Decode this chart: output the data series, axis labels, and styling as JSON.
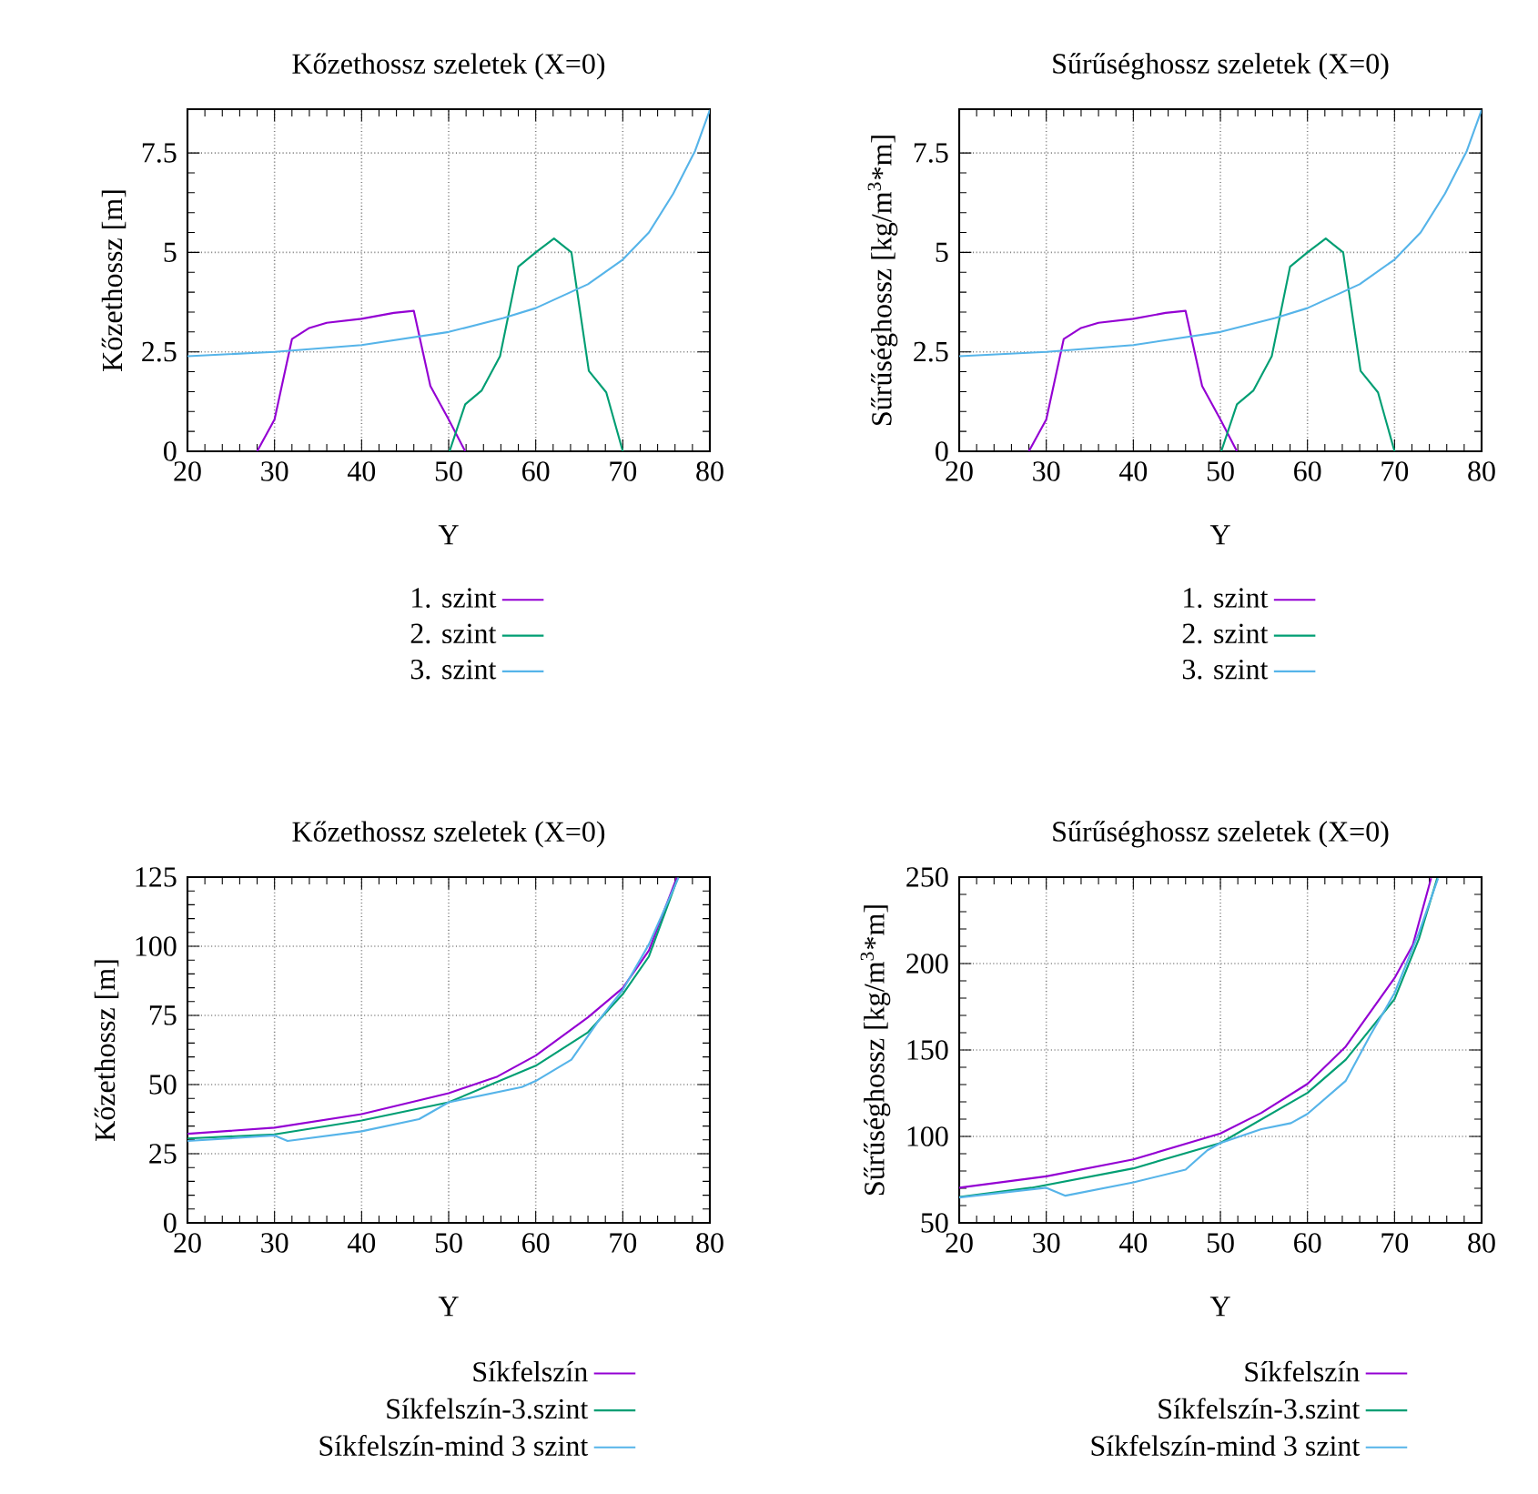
{
  "chart_data": [
    {
      "type": "line",
      "title": "Kőzethossz szeletek (X=0)",
      "xlabel": "Y",
      "ylabel": "Kőzethossz [m]",
      "xlim": [
        20,
        80
      ],
      "ylim": [
        0,
        8.6
      ],
      "xticks": [
        20,
        30,
        40,
        50,
        60,
        70,
        80
      ],
      "yticks": [
        0,
        2.5,
        5,
        7.5
      ],
      "grid": true,
      "legend": "bottom",
      "series": [
        {
          "name": "1. szint",
          "color": "#9400d3",
          "x": [
            28,
            30,
            32,
            34,
            36,
            40,
            43.7,
            46,
            47.9,
            50,
            51.9
          ],
          "values": [
            0,
            0.8,
            2.82,
            3.1,
            3.23,
            3.33,
            3.48,
            3.53,
            1.64,
            0.8,
            0
          ]
        },
        {
          "name": "2. szint",
          "color": "#009e73",
          "x": [
            50.1,
            51.9,
            53.8,
            55.9,
            58,
            60,
            62.1,
            64.1,
            66.1,
            68.1,
            70
          ],
          "values": [
            0,
            1.18,
            1.53,
            2.39,
            4.64,
            5,
            5.35,
            5,
            2.02,
            1.48,
            0
          ]
        },
        {
          "name": "3. szint",
          "color": "#56b4e9",
          "x": [
            20,
            30,
            40,
            50,
            56.3,
            60,
            66,
            70,
            73,
            75.8,
            78.3,
            80
          ],
          "values": [
            2.39,
            2.5,
            2.67,
            3,
            3.35,
            3.6,
            4.2,
            4.82,
            5.5,
            6.48,
            7.55,
            8.58
          ]
        }
      ]
    },
    {
      "type": "line",
      "title": "Sűrűséghossz szeletek (X=0)",
      "xlabel": "Y",
      "ylabel": "Sűrűséghossz [kg/m$^{3}$*m]",
      "xlim": [
        20,
        80
      ],
      "ylim": [
        0,
        8.6
      ],
      "xticks": [
        20,
        30,
        40,
        50,
        60,
        70,
        80
      ],
      "yticks": [
        0,
        2.5,
        5,
        7.5
      ],
      "grid": true,
      "legend": "bottom",
      "series": [
        {
          "name": "1. szint",
          "color": "#9400d3",
          "x": [
            28,
            30,
            32,
            34,
            36,
            40,
            43.7,
            46,
            47.9,
            50,
            51.9
          ],
          "values": [
            0,
            0.8,
            2.82,
            3.1,
            3.23,
            3.33,
            3.48,
            3.53,
            1.64,
            0.8,
            0
          ]
        },
        {
          "name": "2. szint",
          "color": "#009e73",
          "x": [
            50.1,
            51.9,
            53.8,
            55.9,
            58,
            60,
            62.1,
            64.1,
            66.1,
            68.1,
            70
          ],
          "values": [
            0,
            1.18,
            1.53,
            2.39,
            4.64,
            5,
            5.35,
            5,
            2.02,
            1.48,
            0
          ]
        },
        {
          "name": "3. szint",
          "color": "#56b4e9",
          "x": [
            20,
            30,
            40,
            50,
            56.3,
            60,
            66,
            70,
            73,
            75.8,
            78.3,
            80
          ],
          "values": [
            2.39,
            2.5,
            2.67,
            3,
            3.35,
            3.6,
            4.2,
            4.82,
            5.5,
            6.48,
            7.55,
            8.58
          ]
        }
      ]
    },
    {
      "type": "line",
      "title": "Kőzethossz szeletek (X=0)",
      "xlabel": "Y",
      "ylabel": "Kőzethossz [m]",
      "xlim": [
        20,
        80
      ],
      "ylim": [
        0,
        125
      ],
      "xticks": [
        20,
        30,
        40,
        50,
        60,
        70,
        80
      ],
      "yticks": [
        0,
        25,
        50,
        75,
        100,
        125
      ],
      "grid": true,
      "legend": "bottom",
      "series": [
        {
          "name": "Síkfelszín",
          "color": "#9400d3",
          "x": [
            20,
            30,
            40,
            50,
            55.6,
            60,
            66,
            70,
            73,
            76.2
          ],
          "values": [
            32.2,
            34.4,
            39.3,
            46.9,
            52.9,
            60.5,
            74.3,
            84.9,
            98.5,
            124.8
          ]
        },
        {
          "name": "Síkfelszín-3.szint",
          "color": "#009e73",
          "x": [
            20,
            30,
            40,
            50,
            60,
            66,
            70,
            73,
            76.2
          ],
          "values": [
            30.5,
            32,
            37,
            43.6,
            56.8,
            68.9,
            82.7,
            96.3,
            123.7
          ]
        },
        {
          "name": "Síkfelszín-mind 3 szint",
          "color": "#56b4e9",
          "x": [
            20,
            30,
            31.5,
            40,
            46.6,
            50,
            58.4,
            60,
            64.1,
            67.4,
            70,
            73,
            76.4
          ],
          "values": [
            29.6,
            31.6,
            29.6,
            33.1,
            37.5,
            43.6,
            49.1,
            51.3,
            59,
            73.9,
            84.2,
            100.7,
            124.8
          ]
        }
      ]
    },
    {
      "type": "line",
      "title": "Sűrűséghossz szeletek (X=0)",
      "xlabel": "Y",
      "ylabel": "Sűrűséghossz [kg/m$^{3}$*m]",
      "xlim": [
        20,
        80
      ],
      "ylim": [
        50,
        250
      ],
      "xticks": [
        20,
        30,
        40,
        50,
        60,
        70,
        80
      ],
      "yticks": [
        50,
        100,
        150,
        200,
        250
      ],
      "grid": true,
      "legend": "bottom",
      "series": [
        {
          "name": "Síkfelszín",
          "color": "#9400d3",
          "x": [
            20,
            30,
            40,
            50,
            54.7,
            60,
            64.4,
            70,
            72.1,
            74.2
          ],
          "values": [
            70.3,
            76.9,
            86.7,
            101.7,
            113.6,
            130.4,
            152,
            191.6,
            210.8,
            249.3
          ]
        },
        {
          "name": "Síkfelszín-3.szint",
          "color": "#009e73",
          "x": [
            20,
            28.3,
            40,
            50,
            60,
            64.4,
            70,
            72.8,
            74.9
          ],
          "values": [
            65,
            70.3,
            81.5,
            96.2,
            125.2,
            144.4,
            179.4,
            214.3,
            249.3
          ]
        },
        {
          "name": "Síkfelszín-mind 3 szint",
          "color": "#56b4e9",
          "x": [
            20,
            30,
            32.2,
            40,
            46,
            48.5,
            50,
            54.7,
            58.1,
            60,
            64.4,
            67.2,
            70,
            72.8,
            75
          ],
          "values": [
            64.7,
            70.3,
            65.7,
            73.4,
            80.8,
            92,
            96.2,
            104.2,
            107.7,
            113,
            132.2,
            158.4,
            182.9,
            217.8,
            249.3
          ]
        }
      ]
    }
  ]
}
